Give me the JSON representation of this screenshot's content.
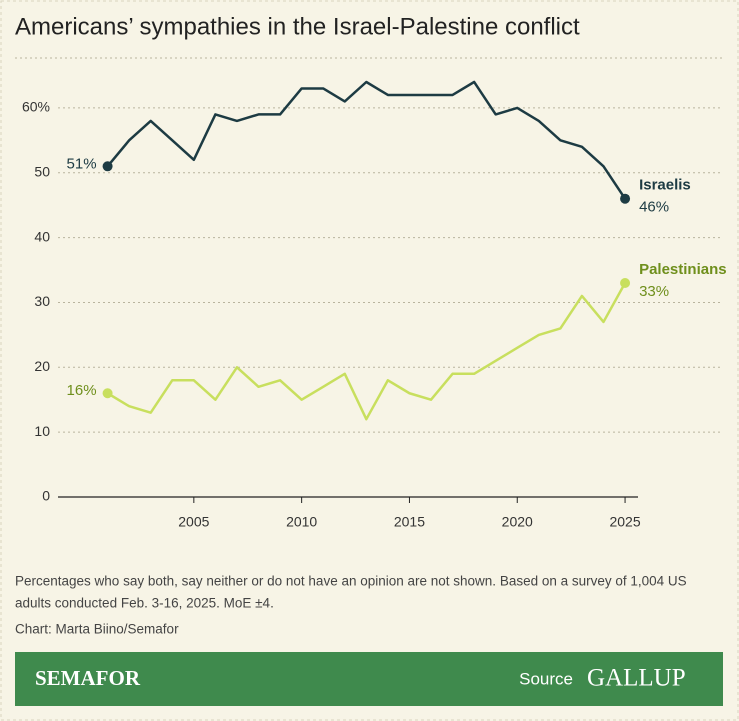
{
  "chart_data": {
    "type": "line",
    "title": "Americans’ sympathies in the Israel-Palestine conflict",
    "x": [
      2001,
      2002,
      2003,
      2004,
      2005,
      2006,
      2007,
      2008,
      2009,
      2010,
      2011,
      2012,
      2013,
      2014,
      2015,
      2016,
      2017,
      2018,
      2019,
      2020,
      2021,
      2022,
      2023,
      2024,
      2025
    ],
    "series": [
      {
        "name": "Israelis",
        "color": "#1d3b43",
        "label_color": "#1d3b43",
        "values": [
          51,
          55,
          58,
          55,
          52,
          59,
          58,
          59,
          59,
          63,
          63,
          61,
          64,
          62,
          62,
          62,
          62,
          64,
          59,
          60,
          58,
          55,
          54,
          51,
          46
        ],
        "value_labels": [
          "51%",
          null,
          null,
          null,
          null,
          null,
          null,
          null,
          null,
          null,
          null,
          null,
          null,
          null,
          null,
          null,
          null,
          null,
          null,
          null,
          null,
          null,
          null,
          null,
          "46%"
        ]
      },
      {
        "name": "Palestinians",
        "color": "#c8df5e",
        "label_color": "#6f8f1c",
        "values": [
          16,
          14,
          13,
          18,
          18,
          15,
          20,
          17,
          18,
          15,
          17,
          19,
          12,
          18,
          16,
          15,
          19,
          19,
          21,
          23,
          25,
          26,
          31,
          27,
          33
        ],
        "value_labels": [
          "16%",
          null,
          null,
          null,
          null,
          null,
          null,
          null,
          null,
          null,
          null,
          null,
          null,
          null,
          null,
          null,
          null,
          null,
          null,
          null,
          null,
          null,
          null,
          null,
          "33%"
        ]
      }
    ],
    "xlim": [
      1998.7,
      2025.6
    ],
    "xticks": [
      2005,
      2010,
      2015,
      2020,
      2025
    ],
    "ylim": [
      0,
      67.7
    ],
    "yticks": [
      0,
      10,
      20,
      30,
      40,
      50,
      {
        "value": 60,
        "label": "60%"
      }
    ],
    "grid": true,
    "note": [
      "Percentages who say both, say neither or do not have an opinion are not shown. Based on a survey of 1,004 US",
      "adults conducted Feb. 3-16, 2025. MoE ±4."
    ],
    "credit": "Chart: Marta Biino/Semafor",
    "brand": "SEMAFOR",
    "source_label": "Source",
    "source_name": "GALLUP"
  }
}
